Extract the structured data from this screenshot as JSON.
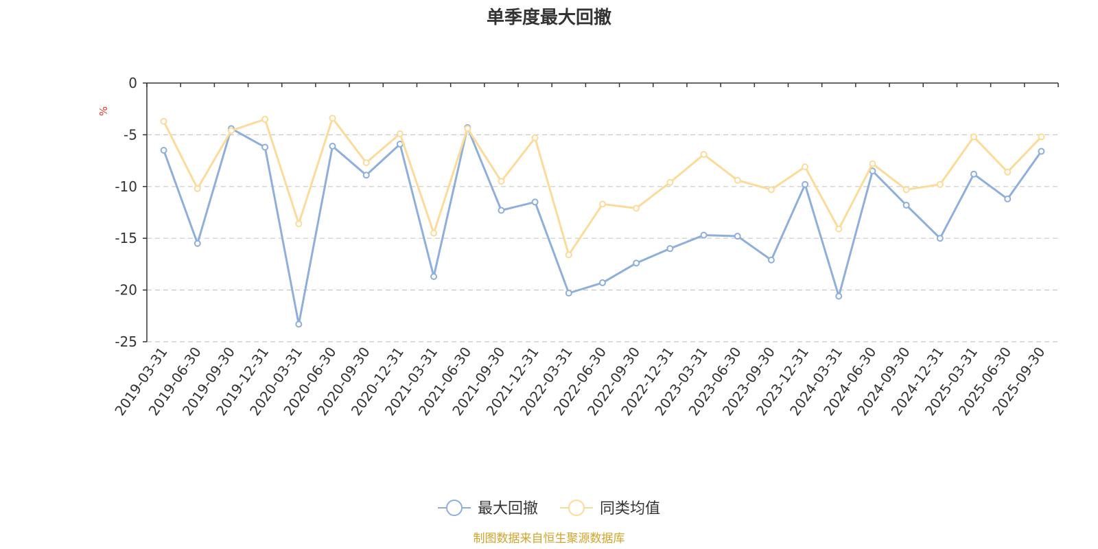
{
  "chart_data": {
    "type": "line",
    "title": "单季度最大回撤",
    "ylabel": "%",
    "ylim": [
      -25,
      0
    ],
    "yticks": [
      0,
      -5,
      -10,
      -15,
      -20,
      -25
    ],
    "grid": true,
    "legend_position": "bottom-center",
    "categories": [
      "2019-03-31",
      "2019-06-30",
      "2019-09-30",
      "2019-12-31",
      "2020-03-31",
      "2020-06-30",
      "2020-09-30",
      "2020-12-31",
      "2021-03-31",
      "2021-06-30",
      "2021-09-30",
      "2021-12-31",
      "2022-03-31",
      "2022-06-30",
      "2022-09-30",
      "2022-12-31",
      "2023-03-31",
      "2023-06-30",
      "2023-09-30",
      "2023-12-31",
      "2024-03-31",
      "2024-06-30",
      "2024-09-30",
      "2024-12-31",
      "2025-03-31",
      "2025-06-30",
      "2025-09-30"
    ],
    "series": [
      {
        "name": "最大回撤",
        "color": "#8eaedb",
        "values": [
          -6.5,
          -15.5,
          -4.4,
          -6.2,
          -23.3,
          -6.1,
          -8.9,
          -5.9,
          -18.7,
          -4.3,
          -12.3,
          -11.5,
          -20.3,
          -19.3,
          -17.4,
          -16.0,
          -14.7,
          -14.8,
          -17.1,
          -9.8,
          -20.6,
          -8.5,
          -11.8,
          -15.0,
          -8.8,
          -11.2,
          -6.6
        ]
      },
      {
        "name": "同类均值",
        "color": "#fcdb9a",
        "values": [
          -3.7,
          -10.2,
          -4.6,
          -3.5,
          -13.6,
          -3.4,
          -7.7,
          -4.9,
          -14.5,
          -4.4,
          -9.5,
          -5.3,
          -16.6,
          -11.7,
          -12.1,
          -9.6,
          -6.9,
          -9.4,
          -10.3,
          -8.1,
          -14.1,
          -7.8,
          -10.3,
          -9.8,
          -5.2,
          -8.6,
          -5.2
        ]
      }
    ],
    "source": "制图数据来自恒生聚源数据库",
    "source_color": "#d4a32a",
    "ylabel_color": "#e8342c",
    "axis_color": "#333333",
    "grid_color": "#c8c8c8"
  }
}
